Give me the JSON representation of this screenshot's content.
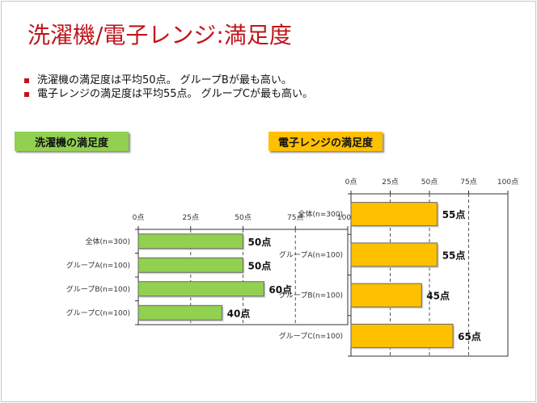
{
  "title": "洗濯機/電子レンジ:満足度",
  "bullets": [
    "洗濯機の満足度は平均50点。 グループBが最も高い。",
    "電子レンジの満足度は平均55点。 グループCが最も高い。"
  ],
  "colors": {
    "title": "#c0161b",
    "washer": "#92d050",
    "microwave": "#ffc000"
  },
  "chart_data": [
    {
      "type": "bar",
      "orientation": "horizontal",
      "title": "洗濯機の満足度",
      "categories": [
        "全体(n=300)",
        "グループA(n=100)",
        "グループB(n=100)",
        "グループC(n=100)"
      ],
      "values": [
        50,
        50,
        60,
        40
      ],
      "data_labels": [
        "50点",
        "50点",
        "60点",
        "40点"
      ],
      "xlim": [
        0,
        100
      ],
      "xticks": [
        "0点",
        "25点",
        "50点",
        "75点",
        "100点"
      ],
      "grid": "vertical dashed",
      "color": "#92d050"
    },
    {
      "type": "bar",
      "orientation": "horizontal",
      "title": "電子レンジの満足度",
      "categories": [
        "全体(n=300)",
        "グループA(n=100)",
        "グループB(n=100)",
        "グループC(n=100)"
      ],
      "values": [
        55,
        55,
        45,
        65
      ],
      "data_labels": [
        "55点",
        "55点",
        "45点",
        "65点"
      ],
      "xlim": [
        0,
        100
      ],
      "xticks": [
        "0点",
        "25点",
        "50点",
        "75点",
        "100点"
      ],
      "grid": "vertical dashed",
      "color": "#ffc000"
    }
  ]
}
